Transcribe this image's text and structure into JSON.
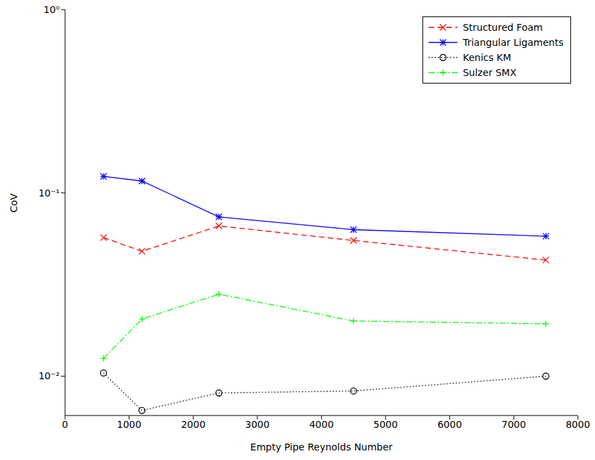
{
  "chart_data": {
    "type": "line",
    "x_label": "Empty Pipe Reynolds Number",
    "y_label": "CoV",
    "log": "y",
    "grid": false,
    "legend": "upper right",
    "x": [
      600,
      1200,
      2400,
      4500,
      7500
    ],
    "xlim": [
      0,
      8000
    ],
    "xticks": [
      0,
      1000,
      2000,
      3000,
      4000,
      5000,
      6000,
      7000,
      8000
    ],
    "ylim": [
      0.0061,
      1
    ],
    "yticks": [
      {
        "value": 0.01,
        "label": "10⁻²"
      },
      {
        "value": 0.1,
        "label": "10⁻¹"
      },
      {
        "value": 1,
        "label": "10⁰"
      }
    ],
    "series": [
      {
        "name": "Structured Foam",
        "color": "#ff0000",
        "marker": "x",
        "line_style": "dashed",
        "values": [
          0.057,
          0.048,
          0.066,
          0.055,
          0.043
        ]
      },
      {
        "name": "Triangular Ligaments",
        "color": "#0000ff",
        "marker": "star",
        "line_style": "solid",
        "values": [
          0.123,
          0.116,
          0.074,
          0.063,
          0.058
        ]
      },
      {
        "name": "Kenics KM",
        "color": "#000000",
        "marker": "circle",
        "line_style": "dotted",
        "values": [
          0.0104,
          0.0065,
          0.0081,
          0.0083,
          0.01
        ]
      },
      {
        "name": "Sulzer SMX",
        "color": "#00ff00",
        "marker": "plus",
        "line_style": "dashdot",
        "values": [
          0.0125,
          0.0205,
          0.028,
          0.02,
          0.0193
        ]
      }
    ]
  }
}
